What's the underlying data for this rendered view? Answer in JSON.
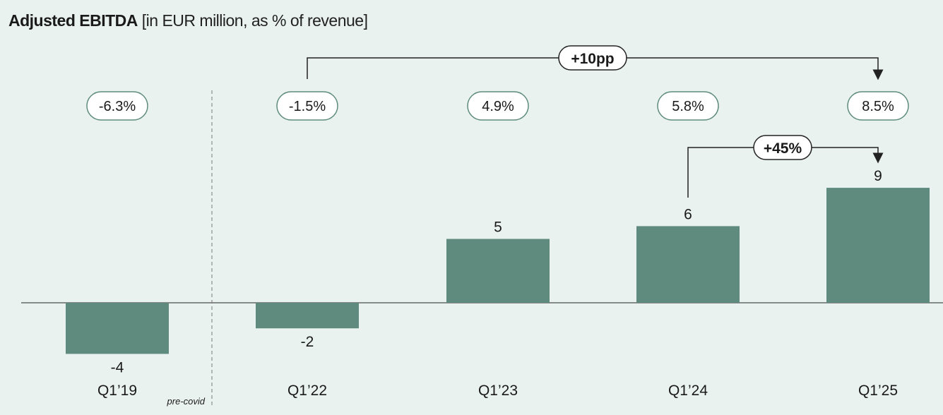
{
  "title_bold": "Adjusted EBITDA",
  "title_rest": "[in EUR million, as % of revenue]",
  "colors": {
    "bar": "#5e8b7e",
    "background": "#e9f2ef",
    "pill_border": "#5e8b7e"
  },
  "chart_data": {
    "type": "bar",
    "categories": [
      "Q1’19",
      "Q1’22",
      "Q1’23",
      "Q1’24",
      "Q1’25"
    ],
    "values": [
      -4,
      -2,
      5,
      6,
      9
    ],
    "value_labels": [
      "-4",
      "-2",
      "5",
      "6",
      "9"
    ],
    "margins": [
      "-6.3%",
      "-1.5%",
      "4.9%",
      "5.8%",
      "8.5%"
    ],
    "ylim": [
      -4.5,
      10
    ],
    "separator_note": "pre-covid",
    "annotations": [
      {
        "label": "+10pp",
        "from": "Q1’22",
        "to": "Q1’25"
      },
      {
        "label": "+45%",
        "from": "Q1’24",
        "to": "Q1’25"
      }
    ]
  }
}
